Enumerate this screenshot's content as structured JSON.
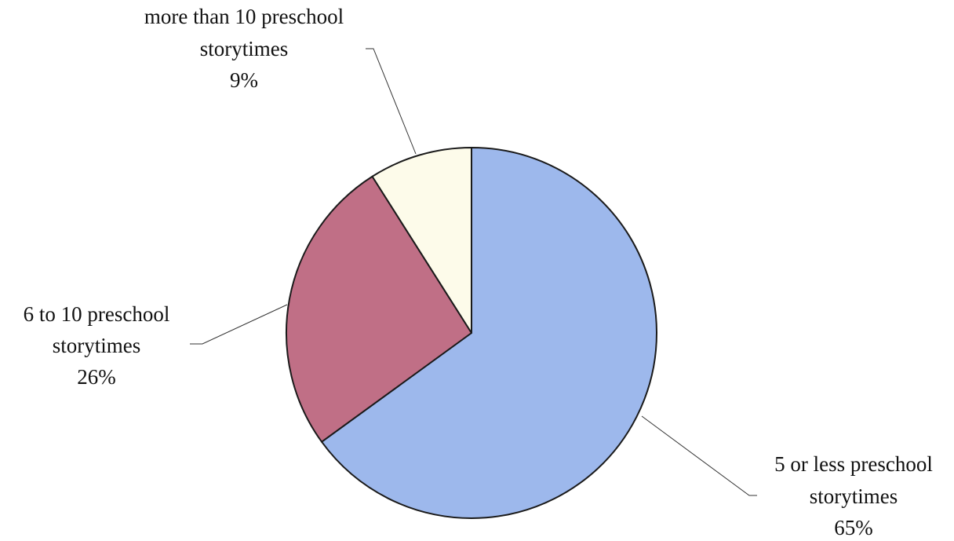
{
  "chart_data": {
    "type": "pie",
    "start": "12 o'clock",
    "direction": "clockwise",
    "slices": [
      {
        "label_lines": [
          "5 or less preschool",
          "storytimes"
        ],
        "percent_label": "65%",
        "value": 65,
        "color": "#9db8ec"
      },
      {
        "label_lines": [
          "6 to 10 preschool",
          "storytimes"
        ],
        "percent_label": "26%",
        "value": 26,
        "color": "#c06f86"
      },
      {
        "label_lines": [
          "more than 10 preschool",
          "storytimes"
        ],
        "percent_label": "9%",
        "value": 9,
        "color": "#fdfbea"
      }
    ]
  }
}
